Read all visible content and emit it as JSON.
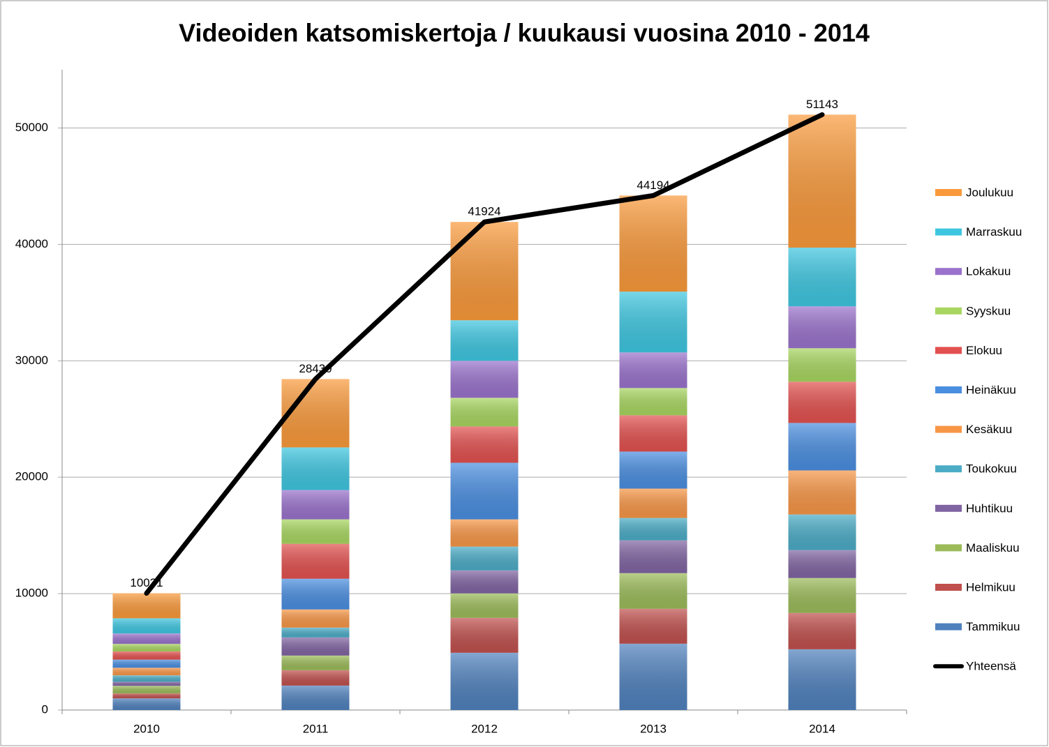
{
  "chart_data": {
    "type": "bar",
    "stacked": true,
    "title": "Videoiden katsomiskertoja / kuukausi vuosina 2010 - 2014",
    "categories": [
      "2010",
      "2011",
      "2012",
      "2013",
      "2014"
    ],
    "ylim": [
      0,
      55000
    ],
    "yticks": [
      0,
      10000,
      20000,
      30000,
      40000,
      50000
    ],
    "grid": true,
    "legend": "right",
    "series": [
      {
        "name": "Tammikuu",
        "color": "#4f81bd",
        "values": [
          1000,
          2100,
          4920,
          5700,
          5220
        ]
      },
      {
        "name": "Helmikuu",
        "color": "#c0504d",
        "values": [
          430,
          1320,
          3000,
          3000,
          3120
        ]
      },
      {
        "name": "Maaliskuu",
        "color": "#9bbb59",
        "values": [
          650,
          1260,
          2100,
          3060,
          3000
        ]
      },
      {
        "name": "Huhtikuu",
        "color": "#8064a2",
        "values": [
          350,
          1560,
          1980,
          2820,
          2400
        ]
      },
      {
        "name": "Toukokuu",
        "color": "#4bacc6",
        "values": [
          550,
          840,
          2040,
          1920,
          3060
        ]
      },
      {
        "name": "Kesäkuu",
        "color": "#f79646",
        "values": [
          650,
          1560,
          2340,
          2520,
          3780
        ]
      },
      {
        "name": "Heinäkuu",
        "color": "#4a8ee0",
        "values": [
          700,
          2640,
          4860,
          3180,
          4080
        ]
      },
      {
        "name": "Elokuu",
        "color": "#e2514f",
        "values": [
          700,
          3000,
          3120,
          3120,
          3540
        ]
      },
      {
        "name": "Syyskuu",
        "color": "#a8d660",
        "values": [
          650,
          2100,
          2460,
          2340,
          2880
        ]
      },
      {
        "name": "Lokakuu",
        "color": "#9a72cc",
        "values": [
          900,
          2520,
          3180,
          3060,
          3600
        ]
      },
      {
        "name": "Marraskuu",
        "color": "#3ec6e0",
        "values": [
          1300,
          3660,
          3480,
          5220,
          5040
        ]
      },
      {
        "name": "Joulukuu",
        "color": "#f9993a",
        "values": [
          2151,
          5870,
          8444,
          8254,
          11423
        ]
      }
    ],
    "line": {
      "name": "Yhteensä",
      "color": "#000000",
      "values": [
        10031,
        28430,
        41924,
        44194,
        51143
      ]
    }
  }
}
